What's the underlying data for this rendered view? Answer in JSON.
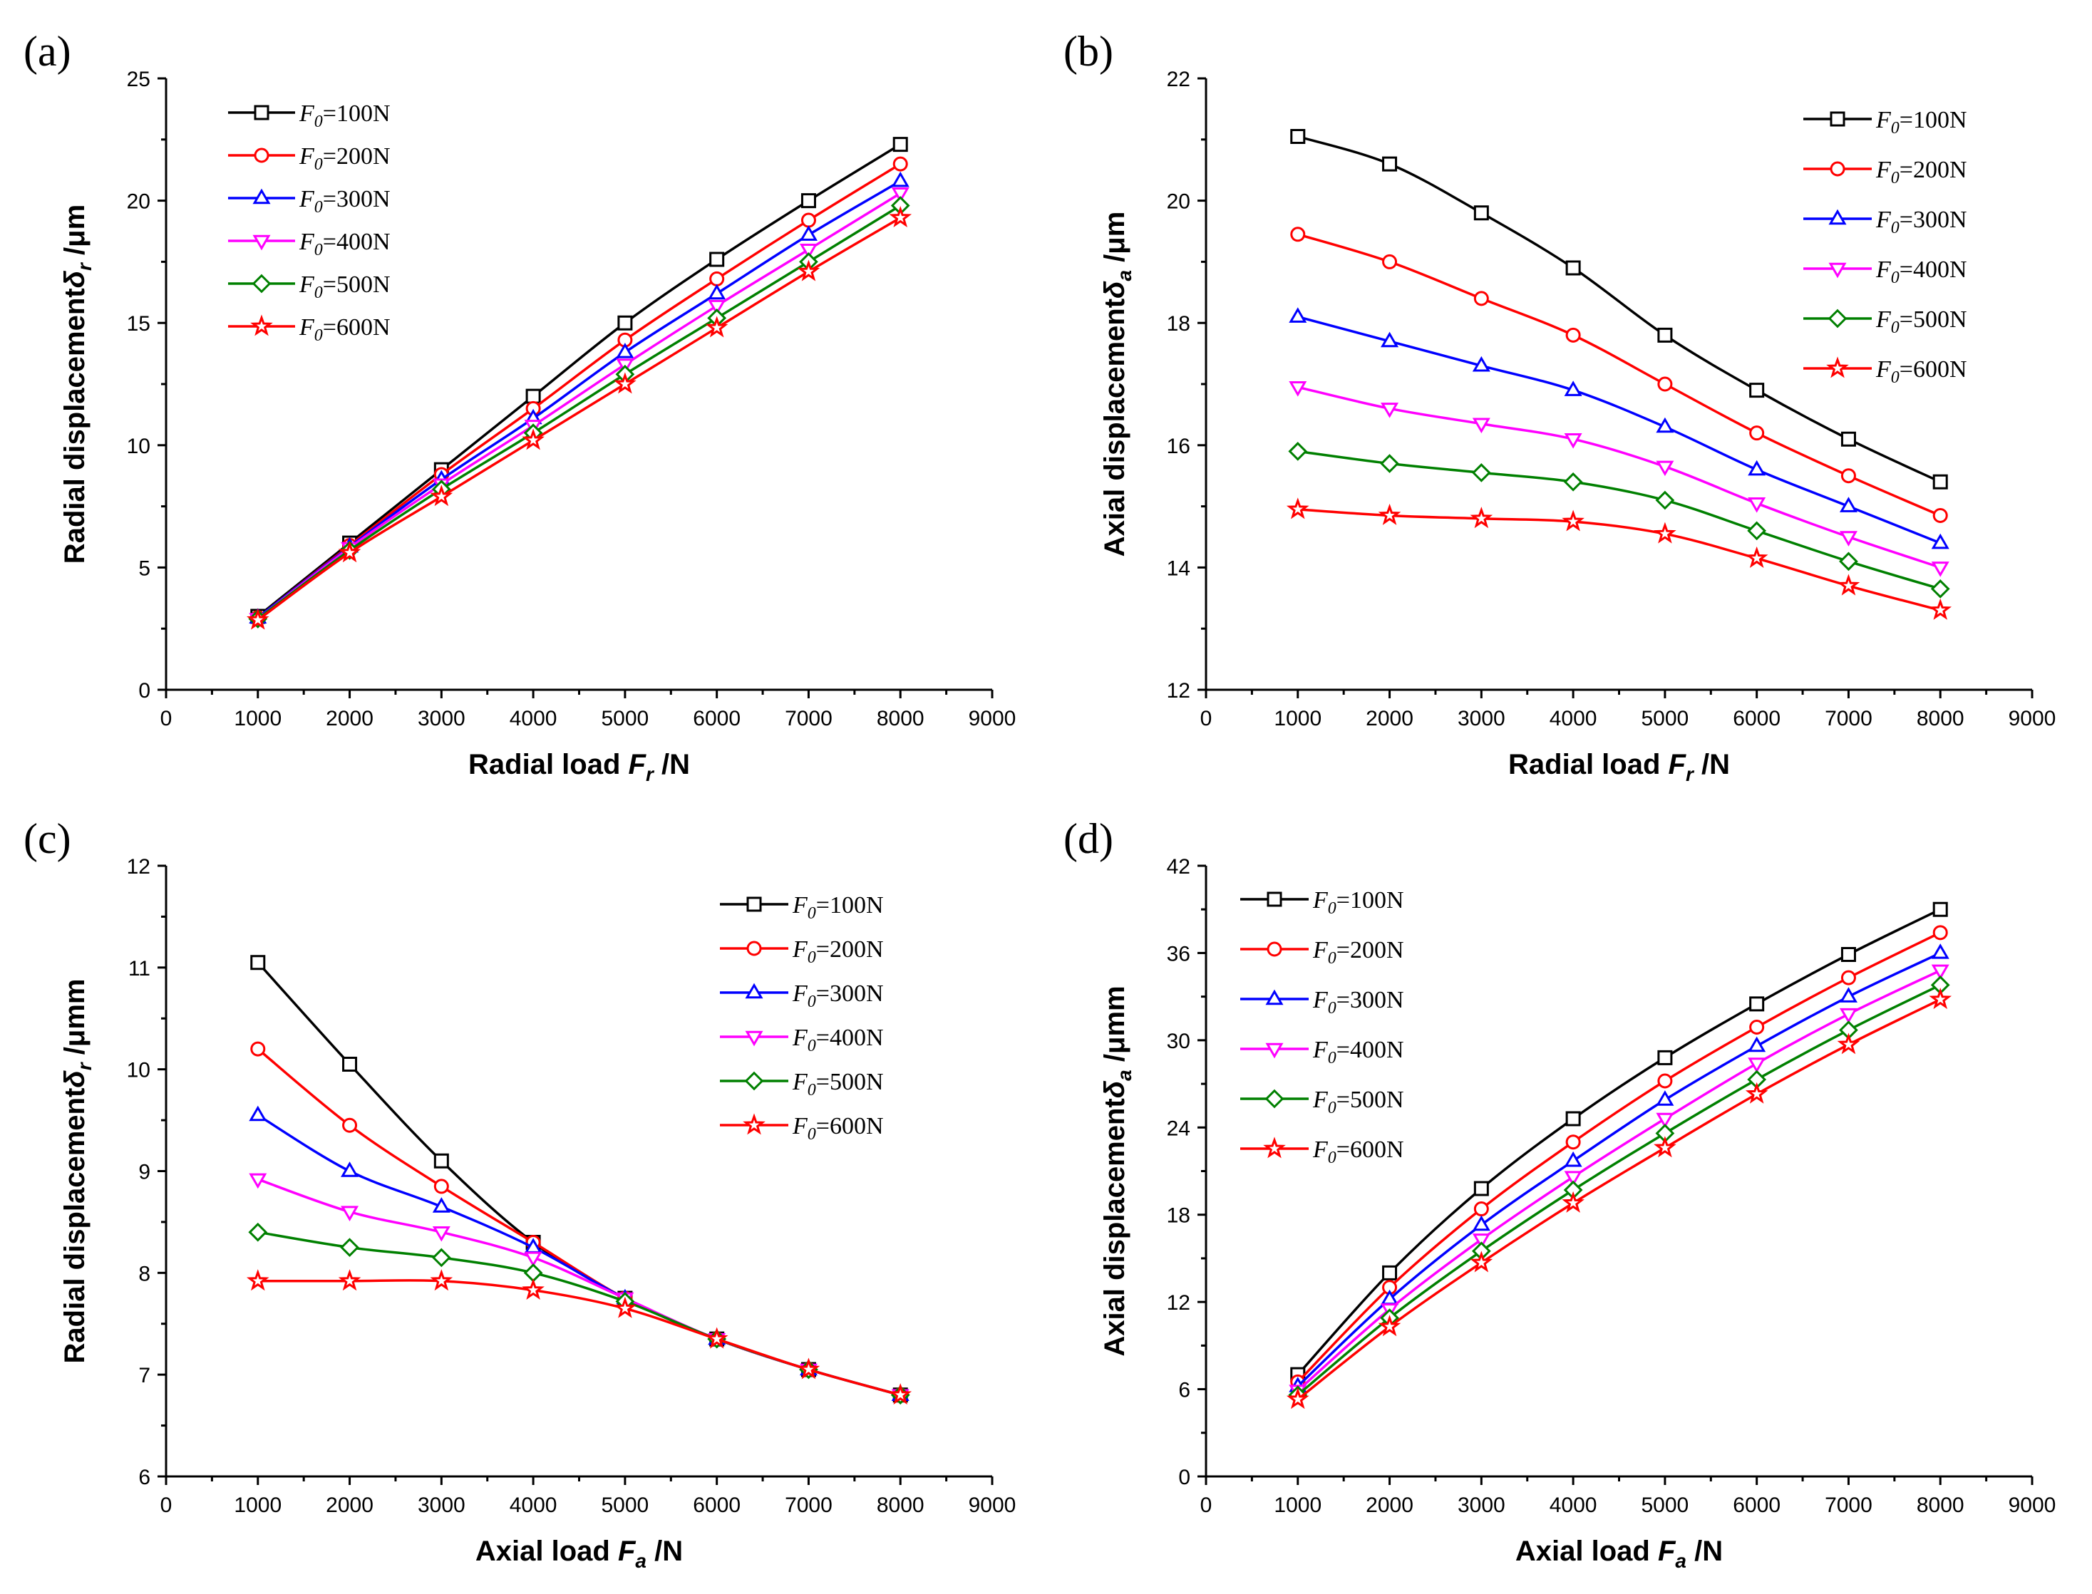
{
  "chart_data": [
    {
      "type": "line",
      "panel_label": "(a)",
      "xlabel_main": "Radial load ",
      "xlabel_sym": "F",
      "xlabel_sub": "r",
      "xlabel_unit": " /N",
      "ylabel_main": "Radial displacement",
      "ylabel_sym": "δ",
      "ylabel_sub": "r",
      "ylabel_unit": " /μm",
      "xlim": [
        0,
        9000
      ],
      "ylim": [
        0,
        25
      ],
      "xticks": [
        0,
        1000,
        2000,
        3000,
        4000,
        5000,
        6000,
        7000,
        8000,
        9000
      ],
      "yticks": [
        0,
        5,
        10,
        15,
        20,
        25
      ],
      "legend_position": "top-left",
      "x": [
        1000,
        2000,
        3000,
        4000,
        5000,
        6000,
        7000,
        8000
      ],
      "series": [
        {
          "name": "F0=100N",
          "label_sym": "F",
          "label_sub": "0",
          "label_val": "=100N",
          "color": "#000000",
          "marker": "square",
          "values": [
            3.0,
            6.0,
            9.0,
            12.0,
            15.0,
            17.6,
            20.0,
            22.3
          ]
        },
        {
          "name": "F0=200N",
          "label_sym": "F",
          "label_sub": "0",
          "label_val": "=200N",
          "color": "#ff0000",
          "marker": "circle",
          "values": [
            2.95,
            5.9,
            8.8,
            11.5,
            14.3,
            16.8,
            19.2,
            21.5
          ]
        },
        {
          "name": "F0=300N",
          "label_sym": "F",
          "label_sub": "0",
          "label_val": "=300N",
          "color": "#0000ff",
          "marker": "triangle-up",
          "values": [
            2.95,
            5.85,
            8.6,
            11.1,
            13.8,
            16.2,
            18.6,
            20.8
          ]
        },
        {
          "name": "F0=400N",
          "label_sym": "F",
          "label_sub": "0",
          "label_val": "=400N",
          "color": "#ff00ff",
          "marker": "triangle-down",
          "values": [
            2.9,
            5.8,
            8.4,
            10.8,
            13.3,
            15.7,
            18.0,
            20.3
          ]
        },
        {
          "name": "F0=500N",
          "label_sym": "F",
          "label_sub": "0",
          "label_val": "=500N",
          "color": "#008000",
          "marker": "diamond",
          "values": [
            2.9,
            5.7,
            8.2,
            10.5,
            12.9,
            15.2,
            17.5,
            19.8
          ]
        },
        {
          "name": "F0=600N",
          "label_sym": "F",
          "label_sub": "0",
          "label_val": "=600N",
          "color": "#ff0000",
          "marker": "star",
          "values": [
            2.85,
            5.6,
            7.9,
            10.2,
            12.5,
            14.8,
            17.1,
            19.3
          ]
        }
      ]
    },
    {
      "type": "line",
      "panel_label": "(b)",
      "xlabel_main": "Radial load ",
      "xlabel_sym": "F",
      "xlabel_sub": "r",
      "xlabel_unit": " /N",
      "ylabel_main": "Axial displacement",
      "ylabel_sym": "δ",
      "ylabel_sub": "a",
      "ylabel_unit": " /μm",
      "xlim": [
        0,
        9000
      ],
      "ylim": [
        12,
        22
      ],
      "xticks": [
        0,
        1000,
        2000,
        3000,
        4000,
        5000,
        6000,
        7000,
        8000,
        9000
      ],
      "yticks": [
        12,
        14,
        16,
        18,
        20,
        22
      ],
      "legend_position": "top-right",
      "x": [
        1000,
        2000,
        3000,
        4000,
        5000,
        6000,
        7000,
        8000
      ],
      "series": [
        {
          "name": "F0=100N",
          "label_sym": "F",
          "label_sub": "0",
          "label_val": "=100N",
          "color": "#000000",
          "marker": "square",
          "values": [
            21.05,
            20.6,
            19.8,
            18.9,
            17.8,
            16.9,
            16.1,
            15.4
          ]
        },
        {
          "name": "F0=200N",
          "label_sym": "F",
          "label_sub": "0",
          "label_val": "=200N",
          "color": "#ff0000",
          "marker": "circle",
          "values": [
            19.45,
            19.0,
            18.4,
            17.8,
            17.0,
            16.2,
            15.5,
            14.85
          ]
        },
        {
          "name": "F0=300N",
          "label_sym": "F",
          "label_sub": "0",
          "label_val": "=300N",
          "color": "#0000ff",
          "marker": "triangle-up",
          "values": [
            18.1,
            17.7,
            17.3,
            16.9,
            16.3,
            15.6,
            15.0,
            14.4
          ]
        },
        {
          "name": "F0=400N",
          "label_sym": "F",
          "label_sub": "0",
          "label_val": "=400N",
          "color": "#ff00ff",
          "marker": "triangle-down",
          "values": [
            16.95,
            16.6,
            16.35,
            16.1,
            15.65,
            15.05,
            14.5,
            14.0
          ]
        },
        {
          "name": "F0=500N",
          "label_sym": "F",
          "label_sub": "0",
          "label_val": "=500N",
          "color": "#008000",
          "marker": "diamond",
          "values": [
            15.9,
            15.7,
            15.55,
            15.4,
            15.1,
            14.6,
            14.1,
            13.65
          ]
        },
        {
          "name": "F0=600N",
          "label_sym": "F",
          "label_sub": "0",
          "label_val": "=600N",
          "color": "#ff0000",
          "marker": "star",
          "values": [
            14.95,
            14.85,
            14.8,
            14.75,
            14.55,
            14.15,
            13.7,
            13.3
          ]
        }
      ]
    },
    {
      "type": "line",
      "panel_label": "(c)",
      "xlabel_main": "Axial load ",
      "xlabel_sym": "F",
      "xlabel_sub": "a",
      "xlabel_unit": " /N",
      "ylabel_main": "Radial displacement",
      "ylabel_sym": "δ",
      "ylabel_sub": "r",
      "ylabel_unit": " /μmm",
      "xlim": [
        0,
        9000
      ],
      "ylim": [
        6,
        12
      ],
      "xticks": [
        0,
        1000,
        2000,
        3000,
        4000,
        5000,
        6000,
        7000,
        8000,
        9000
      ],
      "yticks": [
        6,
        7,
        8,
        9,
        10,
        11,
        12
      ],
      "legend_position": "top-right",
      "x": [
        1000,
        2000,
        3000,
        4000,
        5000,
        6000,
        7000,
        8000
      ],
      "series": [
        {
          "name": "F0=100N",
          "label_sym": "F",
          "label_sub": "0",
          "label_val": "=100N",
          "color": "#000000",
          "marker": "square",
          "values": [
            11.05,
            10.05,
            9.1,
            8.3,
            7.75,
            7.35,
            7.05,
            6.8
          ]
        },
        {
          "name": "F0=200N",
          "label_sym": "F",
          "label_sub": "0",
          "label_val": "=200N",
          "color": "#ff0000",
          "marker": "circle",
          "values": [
            10.2,
            9.45,
            8.85,
            8.3,
            7.75,
            7.35,
            7.05,
            6.8
          ]
        },
        {
          "name": "F0=300N",
          "label_sym": "F",
          "label_sub": "0",
          "label_val": "=300N",
          "color": "#0000ff",
          "marker": "triangle-up",
          "values": [
            9.55,
            9.0,
            8.65,
            8.25,
            7.75,
            7.35,
            7.05,
            6.8
          ]
        },
        {
          "name": "F0=400N",
          "label_sym": "F",
          "label_sub": "0",
          "label_val": "=400N",
          "color": "#ff00ff",
          "marker": "triangle-down",
          "values": [
            8.92,
            8.6,
            8.4,
            8.15,
            7.75,
            7.35,
            7.05,
            6.8
          ]
        },
        {
          "name": "F0=500N",
          "label_sym": "F",
          "label_sub": "0",
          "label_val": "=500N",
          "color": "#008000",
          "marker": "diamond",
          "values": [
            8.4,
            8.25,
            8.15,
            8.0,
            7.72,
            7.35,
            7.05,
            6.8
          ]
        },
        {
          "name": "F0=600N",
          "label_sym": "F",
          "label_sub": "0",
          "label_val": "=600N",
          "color": "#ff0000",
          "marker": "star",
          "values": [
            7.92,
            7.92,
            7.92,
            7.83,
            7.65,
            7.35,
            7.05,
            6.8
          ]
        }
      ]
    },
    {
      "type": "line",
      "panel_label": "(d)",
      "xlabel_main": "Axial load ",
      "xlabel_sym": "F",
      "xlabel_sub": "a",
      "xlabel_unit": " /N",
      "ylabel_main": "Axial displacement",
      "ylabel_sym": "δ",
      "ylabel_sub": "a",
      "ylabel_unit": " /μmm",
      "xlim": [
        0,
        9000
      ],
      "ylim": [
        0,
        42
      ],
      "xticks": [
        0,
        1000,
        2000,
        3000,
        4000,
        5000,
        6000,
        7000,
        8000,
        9000
      ],
      "yticks": [
        0,
        6,
        12,
        18,
        24,
        30,
        36,
        42
      ],
      "legend_position": "top-left",
      "x": [
        1000,
        2000,
        3000,
        4000,
        5000,
        6000,
        7000,
        8000
      ],
      "series": [
        {
          "name": "F0=100N",
          "label_sym": "F",
          "label_sub": "0",
          "label_val": "=100N",
          "color": "#000000",
          "marker": "square",
          "values": [
            7.0,
            14.0,
            19.8,
            24.6,
            28.8,
            32.5,
            35.9,
            39.0
          ]
        },
        {
          "name": "F0=200N",
          "label_sym": "F",
          "label_sub": "0",
          "label_val": "=200N",
          "color": "#ff0000",
          "marker": "circle",
          "values": [
            6.5,
            13.0,
            18.4,
            23.0,
            27.2,
            30.9,
            34.3,
            37.4
          ]
        },
        {
          "name": "F0=300N",
          "label_sym": "F",
          "label_sub": "0",
          "label_val": "=300N",
          "color": "#0000ff",
          "marker": "triangle-up",
          "values": [
            6.2,
            12.2,
            17.3,
            21.7,
            25.9,
            29.6,
            33.0,
            36.0
          ]
        },
        {
          "name": "F0=400N",
          "label_sym": "F",
          "label_sub": "0",
          "label_val": "=400N",
          "color": "#ff00ff",
          "marker": "triangle-down",
          "values": [
            5.9,
            11.5,
            16.3,
            20.6,
            24.6,
            28.4,
            31.8,
            34.8
          ]
        },
        {
          "name": "F0=500N",
          "label_sym": "F",
          "label_sub": "0",
          "label_val": "=500N",
          "color": "#008000",
          "marker": "diamond",
          "values": [
            5.6,
            10.9,
            15.5,
            19.7,
            23.6,
            27.3,
            30.7,
            33.8
          ]
        },
        {
          "name": "F0=600N",
          "label_sym": "F",
          "label_sub": "0",
          "label_val": "=600N",
          "color": "#ff0000",
          "marker": "star",
          "values": [
            5.3,
            10.3,
            14.7,
            18.8,
            22.6,
            26.3,
            29.7,
            32.8
          ]
        }
      ]
    }
  ]
}
